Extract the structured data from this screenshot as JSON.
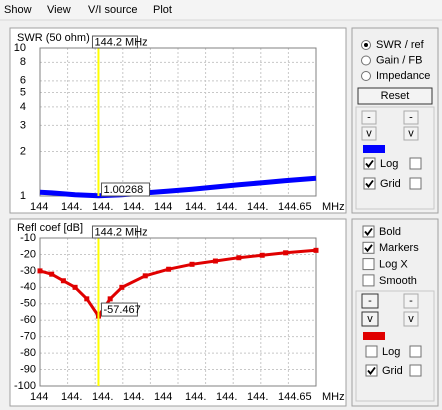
{
  "menu": [
    "Show",
    "View",
    "V/I source",
    "Plot"
  ],
  "charts": [
    {
      "type": "line",
      "y_label": "SWR (50 ohm)",
      "x_unit": "MHz",
      "x_tick_labels": [
        "144",
        "144.",
        "144.",
        "144.",
        "144",
        "144.",
        "144.",
        "144.",
        "144.65"
      ],
      "xlim": [
        144.075,
        144.665
      ],
      "log_y": true,
      "ylim": [
        1,
        10
      ],
      "yticks": [
        1,
        2,
        3,
        4,
        5,
        6,
        8,
        10
      ],
      "grid": true,
      "cursor": {
        "value": 144.2,
        "label": "144.2 MHz"
      },
      "readout": 1.00268,
      "series": {
        "color": "#0000ff",
        "x": [
          144.075,
          144.1,
          144.15,
          144.2,
          144.25,
          144.3,
          144.35,
          144.4,
          144.45,
          144.5,
          144.55,
          144.6,
          144.665
        ],
        "values": [
          1.06,
          1.05,
          1.02,
          1.00268,
          1.02,
          1.05,
          1.08,
          1.11,
          1.15,
          1.19,
          1.23,
          1.27,
          1.32
        ]
      }
    },
    {
      "type": "line",
      "y_label": "Refl coef [dB]",
      "x_unit": "MHz",
      "x_tick_labels": [
        "144",
        "144.",
        "144.",
        "144.",
        "144",
        "144.",
        "144.",
        "144.",
        "144.65"
      ],
      "xlim": [
        144.075,
        144.665
      ],
      "log_y": false,
      "ylim": [
        -100,
        -10
      ],
      "yticks": [
        -10,
        -20,
        -30,
        -40,
        -50,
        -60,
        -70,
        -80,
        -90,
        -100
      ],
      "grid": true,
      "cursor": {
        "value": 144.2,
        "label": "144.2 MHz"
      },
      "readout": -57.467,
      "series": {
        "color": "#e00000",
        "x": [
          144.075,
          144.1,
          144.125,
          144.15,
          144.175,
          144.2,
          144.225,
          144.25,
          144.3,
          144.35,
          144.4,
          144.45,
          144.5,
          144.55,
          144.6,
          144.665
        ],
        "values": [
          -30,
          -32,
          -36,
          -40,
          -47,
          -57.467,
          -47,
          -40,
          -33,
          -29,
          -26,
          -24,
          -22,
          -20.5,
          -19,
          -17.5
        ]
      }
    }
  ],
  "controls": {
    "modes": [
      "SWR / ref",
      "Gain / FB",
      "Impedance"
    ],
    "mode_selected": 0,
    "reset": "Reset",
    "step_buttons": [
      "-",
      "v"
    ],
    "top": {
      "color": "#0000ff",
      "log": {
        "label": "Log",
        "checked": true
      },
      "grid": {
        "label": "Grid",
        "checked": true
      }
    },
    "options": [
      {
        "label": "Bold",
        "checked": true
      },
      {
        "label": "Markers",
        "checked": true
      },
      {
        "label": "Log X",
        "checked": false
      },
      {
        "label": "Smooth",
        "checked": false
      }
    ],
    "bottom": {
      "color": "#e00000",
      "log": {
        "label": "Log",
        "checked": false
      },
      "grid": {
        "label": "Grid",
        "checked": true
      }
    }
  }
}
